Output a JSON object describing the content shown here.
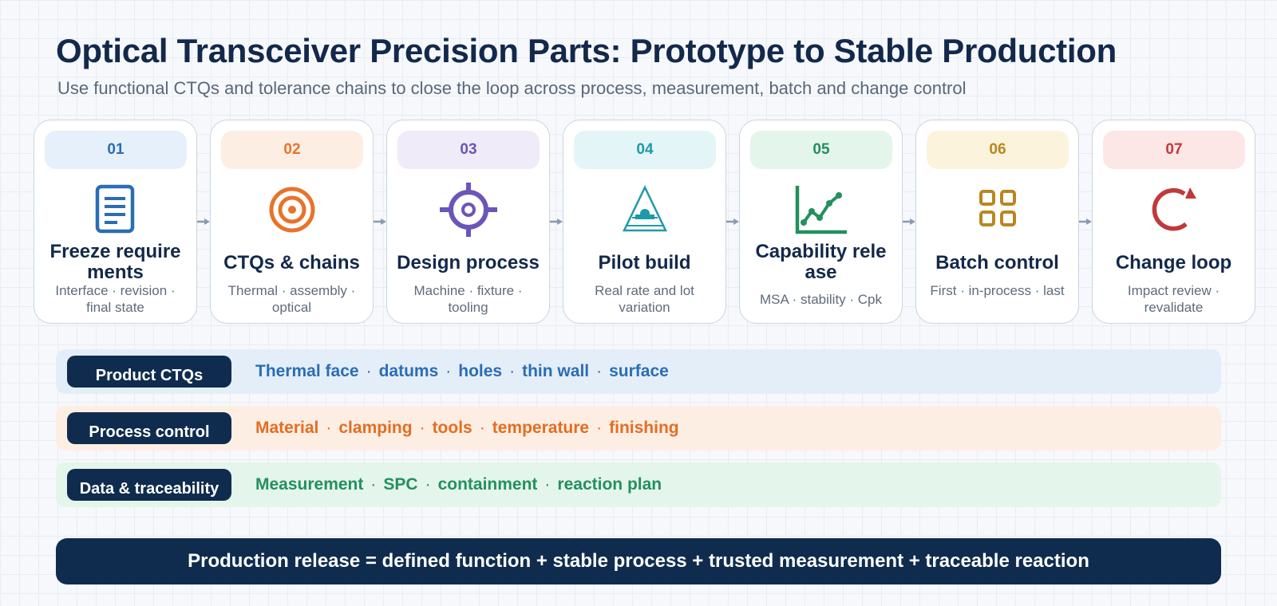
{
  "header": {
    "title": "Optical Transceiver Precision Parts: Prototype to Stable Production",
    "subtitle": "Use functional CTQs and tolerance chains to close the loop across process, measurement, batch and change control"
  },
  "steps": [
    {
      "num": "01",
      "label": "Freeze require ments",
      "sub": "Interface · revision · final state",
      "icon": "document-icon",
      "accent": "#2a6db5",
      "tint": "#e6f0fb"
    },
    {
      "num": "02",
      "label": "CTQs & chains",
      "sub": "Thermal · assembly · optical",
      "icon": "target-icon",
      "accent": "#e8732a",
      "tint": "#fdeee3"
    },
    {
      "num": "03",
      "label": "Design process",
      "sub": "Machine · fixture · tooling",
      "icon": "crosshair-icon",
      "accent": "#6b55b8",
      "tint": "#efebf8"
    },
    {
      "num": "04",
      "label": "Pilot build",
      "sub": "Real rate and lot variation",
      "icon": "flask-icon",
      "accent": "#1e9aa8",
      "tint": "#e3f5f7"
    },
    {
      "num": "05",
      "label": "Capability rele ase",
      "sub": "MSA · stability · Cpk",
      "icon": "line-chart-icon",
      "accent": "#23905e",
      "tint": "#e4f5ec"
    },
    {
      "num": "06",
      "label": "Batch control",
      "sub": "First · in-process · last",
      "icon": "grid-icon",
      "accent": "#b8871e",
      "tint": "#fbf3dc"
    },
    {
      "num": "07",
      "label": "Change loop",
      "sub": "Impact review · revalidate",
      "icon": "refresh-icon",
      "accent": "#c0393b",
      "tint": "#fde6e6"
    }
  ],
  "bands": [
    {
      "tag": "Product CTQs",
      "items": [
        "Thermal face",
        "datums",
        "holes",
        "thin wall",
        "surface"
      ],
      "color": "#2a6db5",
      "bg": "#e4eef9"
    },
    {
      "tag": "Process control",
      "items": [
        "Material",
        "clamping",
        "tools",
        "temperature",
        "finishing"
      ],
      "color": "#e36d22",
      "bg": "#fdeee3"
    },
    {
      "tag": "Data & traceability",
      "items": [
        "Measurement",
        "SPC",
        "containment",
        "reaction plan"
      ],
      "color": "#23905e",
      "bg": "#e4f5ec"
    }
  ],
  "footer": {
    "text": "Production release = defined function + stable process + trusted measurement + traceable reaction"
  },
  "colors": {
    "navy": "#0f2c4e",
    "arrow": "#8a9ab0",
    "card_border": "#c9d4e3"
  }
}
